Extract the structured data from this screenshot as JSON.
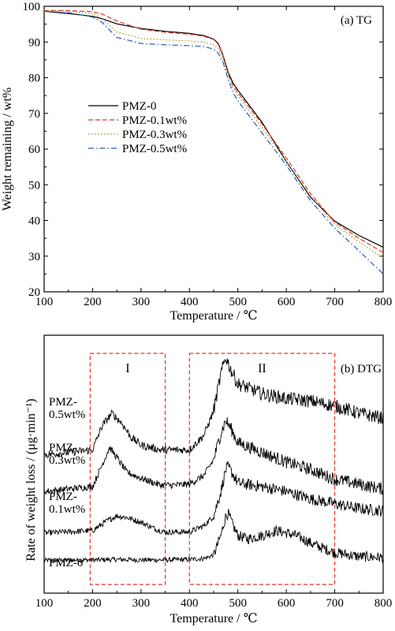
{
  "chart_data": [
    {
      "type": "line",
      "panel_label": "(a) TG",
      "xlabel": "Temperature / ℃",
      "ylabel": "Weight remaining / wt%",
      "xlim": [
        100,
        800
      ],
      "ylim": [
        20,
        100
      ],
      "xticks": [
        "100",
        "200",
        "300",
        "400",
        "500",
        "600",
        "700",
        "800"
      ],
      "yticks": [
        "20",
        "30",
        "40",
        "50",
        "60",
        "70",
        "80",
        "90",
        "100"
      ],
      "legend_position": "left-middle",
      "series": [
        {
          "name": "PMZ-0",
          "color": "#000000",
          "dash": "solid",
          "points": [
            [
              100,
              98.6
            ],
            [
              150,
              98.0
            ],
            [
              200,
              97.2
            ],
            [
              220,
              96.5
            ],
            [
              250,
              95.1
            ],
            [
              300,
              93.8
            ],
            [
              350,
              93.0
            ],
            [
              400,
              92.4
            ],
            [
              430,
              91.8
            ],
            [
              450,
              90.8
            ],
            [
              460,
              89.5
            ],
            [
              470,
              86.0
            ],
            [
              480,
              81.5
            ],
            [
              490,
              78.5
            ],
            [
              500,
              76.5
            ],
            [
              550,
              67.5
            ],
            [
              600,
              56.5
            ],
            [
              650,
              46.5
            ],
            [
              700,
              39.8
            ],
            [
              750,
              35.8
            ],
            [
              800,
              32.5
            ]
          ]
        },
        {
          "name": "PMZ-0.1wt%",
          "color": "#e8322b",
          "dash": "dashed",
          "points": [
            [
              100,
              98.8
            ],
            [
              150,
              98.8
            ],
            [
              200,
              98.5
            ],
            [
              220,
              97.8
            ],
            [
              250,
              95.9
            ],
            [
              300,
              93.6
            ],
            [
              350,
              92.7
            ],
            [
              400,
              92.2
            ],
            [
              430,
              91.6
            ],
            [
              450,
              90.7
            ],
            [
              460,
              89.3
            ],
            [
              470,
              85.8
            ],
            [
              480,
              81.0
            ],
            [
              490,
              77.8
            ],
            [
              500,
              75.8
            ],
            [
              550,
              67.0
            ],
            [
              600,
              57.5
            ],
            [
              650,
              47.5
            ],
            [
              700,
              39.5
            ],
            [
              750,
              35.0
            ],
            [
              800,
              31.0
            ]
          ]
        },
        {
          "name": "PMZ-0.3wt%",
          "color": "#9a9a10",
          "dash": "dotted",
          "points": [
            [
              100,
              98.8
            ],
            [
              150,
              98.6
            ],
            [
              200,
              98.0
            ],
            [
              220,
              96.5
            ],
            [
              250,
              92.8
            ],
            [
              300,
              91.0
            ],
            [
              350,
              90.6
            ],
            [
              400,
              90.3
            ],
            [
              430,
              90.0
            ],
            [
              450,
              89.2
            ],
            [
              460,
              88.0
            ],
            [
              470,
              85.0
            ],
            [
              480,
              80.5
            ],
            [
              490,
              77.0
            ],
            [
              500,
              75.0
            ],
            [
              550,
              66.0
            ],
            [
              600,
              56.5
            ],
            [
              650,
              46.8
            ],
            [
              700,
              38.8
            ],
            [
              750,
              34.0
            ],
            [
              800,
              29.5
            ]
          ]
        },
        {
          "name": "PMZ-0.5wt%",
          "color": "#2a5cb0",
          "dash": "dashdot",
          "points": [
            [
              100,
              98.6
            ],
            [
              150,
              98.2
            ],
            [
              200,
              97.0
            ],
            [
              220,
              95.5
            ],
            [
              250,
              91.3
            ],
            [
              300,
              89.6
            ],
            [
              350,
              89.2
            ],
            [
              400,
              89.0
            ],
            [
              430,
              88.7
            ],
            [
              450,
              88.0
            ],
            [
              460,
              86.8
            ],
            [
              470,
              84.0
            ],
            [
              480,
              79.5
            ],
            [
              490,
              75.8
            ],
            [
              500,
              73.5
            ],
            [
              550,
              64.5
            ],
            [
              600,
              55.5
            ],
            [
              650,
              45.5
            ],
            [
              700,
              37.8
            ],
            [
              750,
              31.5
            ],
            [
              800,
              25.0
            ]
          ]
        }
      ]
    },
    {
      "type": "line",
      "panel_label": "(b) DTG",
      "xlabel": "Temperature / ℃",
      "ylabel": "Rate of weight loss / (μg·min⁻¹)",
      "xlim": [
        100,
        800
      ],
      "xticks": [
        "100",
        "200",
        "300",
        "400",
        "500",
        "600",
        "700",
        "800"
      ],
      "y_ticks_shown": false,
      "noise_level": "high",
      "regions": [
        {
          "label": "I",
          "x_range": [
            195,
            350
          ]
        },
        {
          "label": "II",
          "x_range": [
            400,
            700
          ]
        }
      ],
      "series": [
        {
          "name": "PMZ-0",
          "label_lines": [
            "PMZ-0"
          ],
          "color": "#000000",
          "points": [
            [
              100,
              0.04
            ],
            [
              200,
              0.05
            ],
            [
              250,
              0.06
            ],
            [
              300,
              0.05
            ],
            [
              350,
              0.05
            ],
            [
              400,
              0.06
            ],
            [
              430,
              0.08
            ],
            [
              450,
              0.15
            ],
            [
              465,
              0.55
            ],
            [
              475,
              0.95
            ],
            [
              480,
              1.0
            ],
            [
              490,
              0.75
            ],
            [
              500,
              0.55
            ],
            [
              520,
              0.48
            ],
            [
              550,
              0.55
            ],
            [
              580,
              0.65
            ],
            [
              620,
              0.55
            ],
            [
              660,
              0.35
            ],
            [
              700,
              0.2
            ],
            [
              750,
              0.12
            ],
            [
              800,
              0.1
            ]
          ]
        },
        {
          "name": "PMZ-0.1wt%",
          "label_lines": [
            "PMZ-",
            "0.1wt%"
          ],
          "color": "#000000",
          "points": [
            [
              100,
              0.6
            ],
            [
              200,
              0.65
            ],
            [
              230,
              0.85
            ],
            [
              250,
              0.95
            ],
            [
              270,
              0.92
            ],
            [
              300,
              0.82
            ],
            [
              330,
              0.68
            ],
            [
              350,
              0.62
            ],
            [
              400,
              0.62
            ],
            [
              430,
              0.75
            ],
            [
              450,
              0.95
            ],
            [
              465,
              1.45
            ],
            [
              475,
              1.9
            ],
            [
              480,
              1.95
            ],
            [
              490,
              1.8
            ],
            [
              500,
              1.62
            ],
            [
              550,
              1.55
            ],
            [
              600,
              1.45
            ],
            [
              650,
              1.3
            ],
            [
              700,
              1.2
            ],
            [
              750,
              1.1
            ],
            [
              800,
              1.05
            ]
          ]
        },
        {
          "name": "PMZ-0.3wt%",
          "label_lines": [
            "PMZ-",
            "0.3wt%"
          ],
          "color": "#000000",
          "points": [
            [
              100,
              1.45
            ],
            [
              200,
              1.55
            ],
            [
              220,
              2.0
            ],
            [
              235,
              2.35
            ],
            [
              250,
              2.15
            ],
            [
              270,
              1.85
            ],
            [
              300,
              1.72
            ],
            [
              340,
              1.58
            ],
            [
              370,
              1.58
            ],
            [
              400,
              1.6
            ],
            [
              430,
              1.78
            ],
            [
              450,
              2.1
            ],
            [
              465,
              2.65
            ],
            [
              475,
              2.9
            ],
            [
              485,
              2.75
            ],
            [
              500,
              2.45
            ],
            [
              550,
              2.25
            ],
            [
              600,
              2.05
            ],
            [
              650,
              1.9
            ],
            [
              700,
              1.7
            ],
            [
              750,
              1.6
            ],
            [
              800,
              1.5
            ]
          ]
        },
        {
          "name": "PMZ-0.5wt%",
          "label_lines": [
            "PMZ-",
            "0.5wt%"
          ],
          "color": "#000000",
          "points": [
            [
              100,
              2.2
            ],
            [
              200,
              2.3
            ],
            [
              220,
              2.8
            ],
            [
              240,
              3.05
            ],
            [
              260,
              2.85
            ],
            [
              280,
              2.55
            ],
            [
              300,
              2.4
            ],
            [
              340,
              2.3
            ],
            [
              400,
              2.3
            ],
            [
              430,
              2.6
            ],
            [
              450,
              3.1
            ],
            [
              465,
              3.85
            ],
            [
              475,
              4.2
            ],
            [
              485,
              3.95
            ],
            [
              500,
              3.65
            ],
            [
              550,
              3.45
            ],
            [
              600,
              3.35
            ],
            [
              650,
              3.3
            ],
            [
              700,
              3.2
            ],
            [
              750,
              3.05
            ],
            [
              800,
              2.95
            ]
          ]
        }
      ]
    }
  ]
}
